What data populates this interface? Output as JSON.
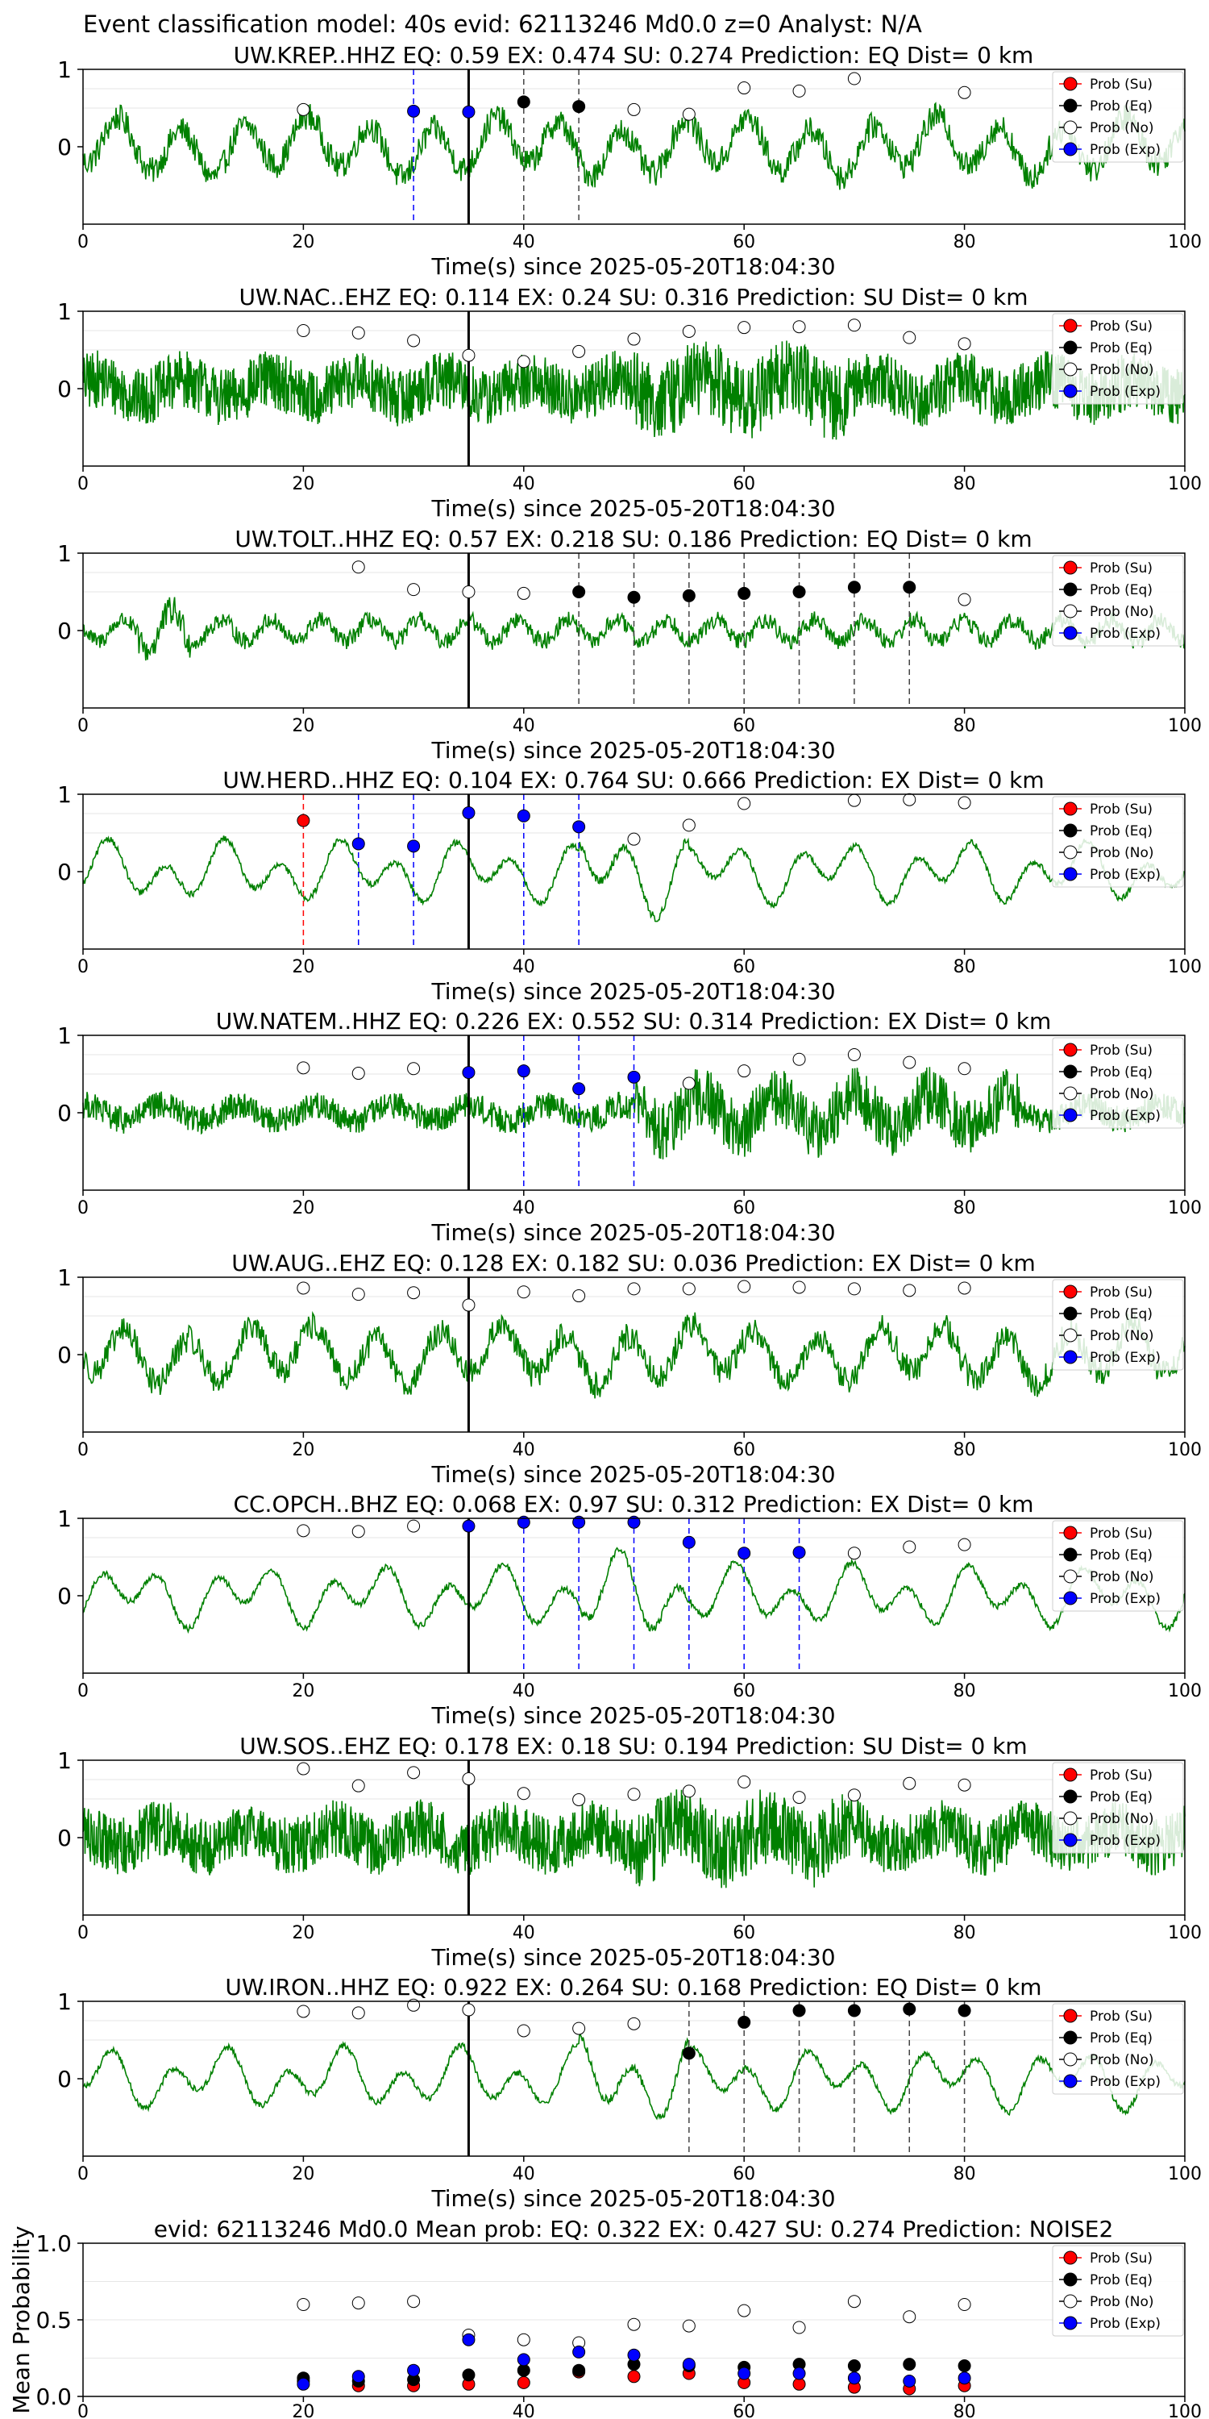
{
  "figure": {
    "suptitle": "Event classification model: 40s evid: 62113246 Md0.0 z=0 Analyst: N/A"
  },
  "legend": {
    "entries": [
      {
        "label": "Prob (Su)",
        "color": "#ff0000"
      },
      {
        "label": "Prob (Eq)",
        "color": "#000000"
      },
      {
        "label": "Prob (No)",
        "color": "#ffffff"
      },
      {
        "label": "Prob (Exp)",
        "color": "#0000ff"
      }
    ]
  },
  "colors": {
    "trace": "#008000",
    "su": "#ff0000",
    "eq": "#000000",
    "no": "#ffffff",
    "exp": "#0000ff",
    "onset_line": "#000000"
  },
  "chart_data": [
    {
      "type": "line",
      "title": "UW.KREP..HHZ   EQ: 0.59  EX: 0.474  SU: 0.274   Prediction: EQ    Dist= 0 km",
      "xlabel": "Time(s) since 2025-05-20T18:04:30",
      "xlim": [
        0,
        100
      ],
      "ylim": [
        -1,
        1
      ],
      "xticks": [
        "0",
        "20",
        "40",
        "60",
        "80",
        "100"
      ],
      "yticks": [
        "1",
        "0"
      ],
      "onset": 35,
      "trace": {
        "style": "medium"
      },
      "markers": [
        {
          "x": 20,
          "y": 0.48,
          "cls": "no"
        },
        {
          "x": 30,
          "y": 0.46,
          "cls": "exp"
        },
        {
          "x": 35,
          "y": 0.45,
          "cls": "exp"
        },
        {
          "x": 40,
          "y": 0.58,
          "cls": "eq"
        },
        {
          "x": 45,
          "y": 0.52,
          "cls": "eq"
        },
        {
          "x": 50,
          "y": 0.48,
          "cls": "no"
        },
        {
          "x": 55,
          "y": 0.42,
          "cls": "no"
        },
        {
          "x": 60,
          "y": 0.76,
          "cls": "no"
        },
        {
          "x": 65,
          "y": 0.72,
          "cls": "no"
        },
        {
          "x": 70,
          "y": 0.88,
          "cls": "no"
        },
        {
          "x": 80,
          "y": 0.7,
          "cls": "no"
        }
      ],
      "vlines": [
        {
          "x": 30,
          "cls": "exp"
        },
        {
          "x": 40,
          "cls": "eq"
        },
        {
          "x": 45,
          "cls": "eq"
        }
      ]
    },
    {
      "type": "line",
      "title": "UW.NAC..EHZ   EQ: 0.114  EX: 0.24  SU: 0.316   Prediction: SU    Dist= 0 km",
      "xlabel": "Time(s) since 2025-05-20T18:04:30",
      "xlim": [
        0,
        100
      ],
      "ylim": [
        -1,
        1
      ],
      "xticks": [
        "0",
        "20",
        "40",
        "60",
        "80",
        "100"
      ],
      "yticks": [
        "1",
        "0"
      ],
      "onset": 35,
      "trace": {
        "style": "noisy"
      },
      "markers": [
        {
          "x": 20,
          "y": 0.75,
          "cls": "no"
        },
        {
          "x": 25,
          "y": 0.72,
          "cls": "no"
        },
        {
          "x": 30,
          "y": 0.62,
          "cls": "no"
        },
        {
          "x": 35,
          "y": 0.43,
          "cls": "no"
        },
        {
          "x": 40,
          "y": 0.35,
          "cls": "no"
        },
        {
          "x": 45,
          "y": 0.48,
          "cls": "no"
        },
        {
          "x": 50,
          "y": 0.64,
          "cls": "no"
        },
        {
          "x": 55,
          "y": 0.74,
          "cls": "no"
        },
        {
          "x": 60,
          "y": 0.79,
          "cls": "no"
        },
        {
          "x": 65,
          "y": 0.8,
          "cls": "no"
        },
        {
          "x": 70,
          "y": 0.82,
          "cls": "no"
        },
        {
          "x": 75,
          "y": 0.66,
          "cls": "no"
        },
        {
          "x": 80,
          "y": 0.58,
          "cls": "no"
        }
      ],
      "vlines": []
    },
    {
      "type": "line",
      "title": "UW.TOLT..HHZ   EQ: 0.57  EX: 0.218  SU: 0.186   Prediction: EQ    Dist= 0 km",
      "xlabel": "Time(s) since 2025-05-20T18:04:30",
      "xlim": [
        0,
        100
      ],
      "ylim": [
        -1,
        1
      ],
      "xticks": [
        "0",
        "20",
        "40",
        "60",
        "80",
        "100"
      ],
      "yticks": [
        "1",
        "0"
      ],
      "onset": 35,
      "trace": {
        "style": "quiet"
      },
      "markers": [
        {
          "x": 25,
          "y": 0.82,
          "cls": "no"
        },
        {
          "x": 30,
          "y": 0.53,
          "cls": "no"
        },
        {
          "x": 35,
          "y": 0.5,
          "cls": "no"
        },
        {
          "x": 40,
          "y": 0.48,
          "cls": "no"
        },
        {
          "x": 45,
          "y": 0.5,
          "cls": "eq"
        },
        {
          "x": 50,
          "y": 0.43,
          "cls": "eq"
        },
        {
          "x": 55,
          "y": 0.45,
          "cls": "eq"
        },
        {
          "x": 60,
          "y": 0.48,
          "cls": "eq"
        },
        {
          "x": 65,
          "y": 0.5,
          "cls": "eq"
        },
        {
          "x": 70,
          "y": 0.56,
          "cls": "eq"
        },
        {
          "x": 75,
          "y": 0.56,
          "cls": "eq"
        },
        {
          "x": 80,
          "y": 0.4,
          "cls": "no"
        }
      ],
      "vlines": [
        {
          "x": 45,
          "cls": "eq"
        },
        {
          "x": 50,
          "cls": "eq"
        },
        {
          "x": 55,
          "cls": "eq"
        },
        {
          "x": 60,
          "cls": "eq"
        },
        {
          "x": 65,
          "cls": "eq"
        },
        {
          "x": 70,
          "cls": "eq"
        },
        {
          "x": 75,
          "cls": "eq"
        }
      ]
    },
    {
      "type": "line",
      "title": "UW.HERD..HHZ   EQ: 0.104  EX: 0.764  SU: 0.666   Prediction: EX    Dist= 0 km",
      "xlabel": "Time(s) since 2025-05-20T18:04:30",
      "xlim": [
        0,
        100
      ],
      "ylim": [
        -1,
        1
      ],
      "xticks": [
        "0",
        "20",
        "40",
        "60",
        "80",
        "100"
      ],
      "yticks": [
        "1",
        "0"
      ],
      "onset": 35,
      "trace": {
        "style": "smooth"
      },
      "markers": [
        {
          "x": 20,
          "y": 0.66,
          "cls": "su"
        },
        {
          "x": 25,
          "y": 0.36,
          "cls": "exp"
        },
        {
          "x": 30,
          "y": 0.33,
          "cls": "exp"
        },
        {
          "x": 35,
          "y": 0.76,
          "cls": "exp"
        },
        {
          "x": 40,
          "y": 0.72,
          "cls": "exp"
        },
        {
          "x": 45,
          "y": 0.58,
          "cls": "exp"
        },
        {
          "x": 50,
          "y": 0.42,
          "cls": "no"
        },
        {
          "x": 55,
          "y": 0.6,
          "cls": "no"
        },
        {
          "x": 60,
          "y": 0.88,
          "cls": "no"
        },
        {
          "x": 70,
          "y": 0.92,
          "cls": "no"
        },
        {
          "x": 75,
          "y": 0.93,
          "cls": "no"
        },
        {
          "x": 80,
          "y": 0.89,
          "cls": "no"
        }
      ],
      "vlines": [
        {
          "x": 20,
          "cls": "su"
        },
        {
          "x": 25,
          "cls": "exp"
        },
        {
          "x": 30,
          "cls": "exp"
        },
        {
          "x": 40,
          "cls": "exp"
        },
        {
          "x": 45,
          "cls": "exp"
        }
      ]
    },
    {
      "type": "line",
      "title": "UW.NATEM..HHZ   EQ: 0.226  EX: 0.552  SU: 0.314   Prediction: EX    Dist= 0 km",
      "xlabel": "Time(s) since 2025-05-20T18:04:30",
      "xlim": [
        0,
        100
      ],
      "ylim": [
        -1,
        1
      ],
      "xticks": [
        "0",
        "20",
        "40",
        "60",
        "80",
        "100"
      ],
      "yticks": [
        "1",
        "0"
      ],
      "onset": 35,
      "trace": {
        "style": "burst"
      },
      "markers": [
        {
          "x": 20,
          "y": 0.58,
          "cls": "no"
        },
        {
          "x": 25,
          "y": 0.51,
          "cls": "no"
        },
        {
          "x": 30,
          "y": 0.57,
          "cls": "no"
        },
        {
          "x": 35,
          "y": 0.52,
          "cls": "exp"
        },
        {
          "x": 40,
          "y": 0.54,
          "cls": "exp"
        },
        {
          "x": 45,
          "y": 0.31,
          "cls": "exp"
        },
        {
          "x": 50,
          "y": 0.46,
          "cls": "exp"
        },
        {
          "x": 55,
          "y": 0.38,
          "cls": "no"
        },
        {
          "x": 60,
          "y": 0.54,
          "cls": "no"
        },
        {
          "x": 65,
          "y": 0.69,
          "cls": "no"
        },
        {
          "x": 70,
          "y": 0.75,
          "cls": "no"
        },
        {
          "x": 75,
          "y": 0.65,
          "cls": "no"
        },
        {
          "x": 80,
          "y": 0.57,
          "cls": "no"
        }
      ],
      "vlines": [
        {
          "x": 40,
          "cls": "exp"
        },
        {
          "x": 45,
          "cls": "exp"
        },
        {
          "x": 50,
          "cls": "exp"
        }
      ]
    },
    {
      "type": "line",
      "title": "UW.AUG..EHZ   EQ: 0.128  EX: 0.182  SU: 0.036   Prediction: EX    Dist= 0 km",
      "xlabel": "Time(s) since 2025-05-20T18:04:30",
      "xlim": [
        0,
        100
      ],
      "ylim": [
        -1,
        1
      ],
      "xticks": [
        "0",
        "20",
        "40",
        "60",
        "80",
        "100"
      ],
      "yticks": [
        "1",
        "0"
      ],
      "onset": 35,
      "trace": {
        "style": "medium"
      },
      "markers": [
        {
          "x": 20,
          "y": 0.86,
          "cls": "no"
        },
        {
          "x": 25,
          "y": 0.78,
          "cls": "no"
        },
        {
          "x": 30,
          "y": 0.8,
          "cls": "no"
        },
        {
          "x": 35,
          "y": 0.64,
          "cls": "no"
        },
        {
          "x": 40,
          "y": 0.81,
          "cls": "no"
        },
        {
          "x": 45,
          "y": 0.76,
          "cls": "no"
        },
        {
          "x": 50,
          "y": 0.85,
          "cls": "no"
        },
        {
          "x": 55,
          "y": 0.85,
          "cls": "no"
        },
        {
          "x": 60,
          "y": 0.88,
          "cls": "no"
        },
        {
          "x": 65,
          "y": 0.87,
          "cls": "no"
        },
        {
          "x": 70,
          "y": 0.85,
          "cls": "no"
        },
        {
          "x": 75,
          "y": 0.83,
          "cls": "no"
        },
        {
          "x": 80,
          "y": 0.86,
          "cls": "no"
        }
      ],
      "vlines": []
    },
    {
      "type": "line",
      "title": "CC.OPCH..BHZ   EQ: 0.068  EX: 0.97  SU: 0.312   Prediction: EX    Dist= 0 km",
      "xlabel": "Time(s) since 2025-05-20T18:04:30",
      "xlim": [
        0,
        100
      ],
      "ylim": [
        -1,
        1
      ],
      "xticks": [
        "0",
        "20",
        "40",
        "60",
        "80",
        "100"
      ],
      "yticks": [
        "1",
        "0"
      ],
      "onset": 35,
      "trace": {
        "style": "smooth"
      },
      "markers": [
        {
          "x": 20,
          "y": 0.84,
          "cls": "no"
        },
        {
          "x": 25,
          "y": 0.83,
          "cls": "no"
        },
        {
          "x": 30,
          "y": 0.9,
          "cls": "no"
        },
        {
          "x": 35,
          "y": 0.9,
          "cls": "exp"
        },
        {
          "x": 40,
          "y": 0.95,
          "cls": "exp"
        },
        {
          "x": 45,
          "y": 0.95,
          "cls": "exp"
        },
        {
          "x": 50,
          "y": 0.95,
          "cls": "exp"
        },
        {
          "x": 55,
          "y": 0.69,
          "cls": "exp"
        },
        {
          "x": 60,
          "y": 0.55,
          "cls": "exp"
        },
        {
          "x": 65,
          "y": 0.56,
          "cls": "exp"
        },
        {
          "x": 70,
          "y": 0.55,
          "cls": "no"
        },
        {
          "x": 75,
          "y": 0.63,
          "cls": "no"
        },
        {
          "x": 80,
          "y": 0.66,
          "cls": "no"
        }
      ],
      "vlines": [
        {
          "x": 40,
          "cls": "exp"
        },
        {
          "x": 45,
          "cls": "exp"
        },
        {
          "x": 50,
          "cls": "exp"
        },
        {
          "x": 55,
          "cls": "exp"
        },
        {
          "x": 60,
          "cls": "exp"
        },
        {
          "x": 65,
          "cls": "exp"
        }
      ]
    },
    {
      "type": "line",
      "title": "UW.SOS..EHZ   EQ: 0.178  EX: 0.18  SU: 0.194   Prediction: SU    Dist= 0 km",
      "xlabel": "Time(s) since 2025-05-20T18:04:30",
      "xlim": [
        0,
        100
      ],
      "ylim": [
        -1,
        1
      ],
      "xticks": [
        "0",
        "20",
        "40",
        "60",
        "80",
        "100"
      ],
      "yticks": [
        "1",
        "0"
      ],
      "onset": 35,
      "trace": {
        "style": "noisy"
      },
      "markers": [
        {
          "x": 20,
          "y": 0.89,
          "cls": "no"
        },
        {
          "x": 25,
          "y": 0.67,
          "cls": "no"
        },
        {
          "x": 30,
          "y": 0.84,
          "cls": "no"
        },
        {
          "x": 35,
          "y": 0.76,
          "cls": "no"
        },
        {
          "x": 40,
          "y": 0.57,
          "cls": "no"
        },
        {
          "x": 45,
          "y": 0.49,
          "cls": "no"
        },
        {
          "x": 50,
          "y": 0.56,
          "cls": "no"
        },
        {
          "x": 55,
          "y": 0.6,
          "cls": "no"
        },
        {
          "x": 60,
          "y": 0.72,
          "cls": "no"
        },
        {
          "x": 65,
          "y": 0.52,
          "cls": "no"
        },
        {
          "x": 70,
          "y": 0.55,
          "cls": "no"
        },
        {
          "x": 75,
          "y": 0.7,
          "cls": "no"
        },
        {
          "x": 80,
          "y": 0.68,
          "cls": "no"
        }
      ],
      "vlines": []
    },
    {
      "type": "line",
      "title": "UW.IRON..HHZ   EQ: 0.922  EX: 0.264  SU: 0.168   Prediction: EQ    Dist= 0 km",
      "xlabel": "Time(s) since 2025-05-20T18:04:30",
      "xlim": [
        0,
        100
      ],
      "ylim": [
        -1,
        1
      ],
      "xticks": [
        "0",
        "20",
        "40",
        "60",
        "80",
        "100"
      ],
      "yticks": [
        "1",
        "0"
      ],
      "onset": 35,
      "trace": {
        "style": "smooth"
      },
      "markers": [
        {
          "x": 20,
          "y": 0.87,
          "cls": "no"
        },
        {
          "x": 25,
          "y": 0.85,
          "cls": "no"
        },
        {
          "x": 30,
          "y": 0.95,
          "cls": "no"
        },
        {
          "x": 35,
          "y": 0.89,
          "cls": "no"
        },
        {
          "x": 40,
          "y": 0.62,
          "cls": "no"
        },
        {
          "x": 45,
          "y": 0.65,
          "cls": "no"
        },
        {
          "x": 50,
          "y": 0.71,
          "cls": "no"
        },
        {
          "x": 55,
          "y": 0.33,
          "cls": "eq"
        },
        {
          "x": 60,
          "y": 0.73,
          "cls": "eq"
        },
        {
          "x": 65,
          "y": 0.88,
          "cls": "eq"
        },
        {
          "x": 70,
          "y": 0.88,
          "cls": "eq"
        },
        {
          "x": 75,
          "y": 0.9,
          "cls": "eq"
        },
        {
          "x": 80,
          "y": 0.88,
          "cls": "eq"
        }
      ],
      "vlines": [
        {
          "x": 55,
          "cls": "eq"
        },
        {
          "x": 60,
          "cls": "eq"
        },
        {
          "x": 65,
          "cls": "eq"
        },
        {
          "x": 70,
          "cls": "eq"
        },
        {
          "x": 75,
          "cls": "eq"
        },
        {
          "x": 80,
          "cls": "eq"
        }
      ]
    },
    {
      "type": "scatter",
      "title": "evid: 62113246  Md0.0   Mean prob:    EQ: 0.322  EX: 0.427  SU: 0.274   Prediction: NOISE2",
      "ylabel": "Mean Probability",
      "xlim": [
        0,
        100
      ],
      "ylim": [
        0,
        1
      ],
      "xticks": [
        "0",
        "20",
        "40",
        "60",
        "80",
        "100"
      ],
      "yticks": [
        "1.0",
        "0.5",
        "0.0"
      ],
      "x": [
        20,
        25,
        30,
        35,
        40,
        45,
        50,
        55,
        60,
        65,
        70,
        75,
        80
      ],
      "series": [
        {
          "name": "Prob (Su)",
          "cls": "su",
          "values": [
            0.1,
            0.07,
            0.07,
            0.08,
            0.09,
            0.16,
            0.13,
            0.15,
            0.09,
            0.08,
            0.06,
            0.05,
            0.07
          ]
        },
        {
          "name": "Prob (Eq)",
          "cls": "eq",
          "values": [
            0.12,
            0.1,
            0.11,
            0.14,
            0.17,
            0.17,
            0.21,
            0.2,
            0.19,
            0.21,
            0.2,
            0.21,
            0.2
          ]
        },
        {
          "name": "Prob (No)",
          "cls": "no",
          "values": [
            0.6,
            0.61,
            0.62,
            0.4,
            0.37,
            0.35,
            0.47,
            0.46,
            0.56,
            0.45,
            0.62,
            0.52,
            0.6
          ]
        },
        {
          "name": "Prob (Exp)",
          "cls": "exp",
          "values": [
            0.08,
            0.13,
            0.17,
            0.37,
            0.24,
            0.29,
            0.27,
            0.21,
            0.15,
            0.15,
            0.12,
            0.1,
            0.12
          ]
        }
      ]
    }
  ]
}
